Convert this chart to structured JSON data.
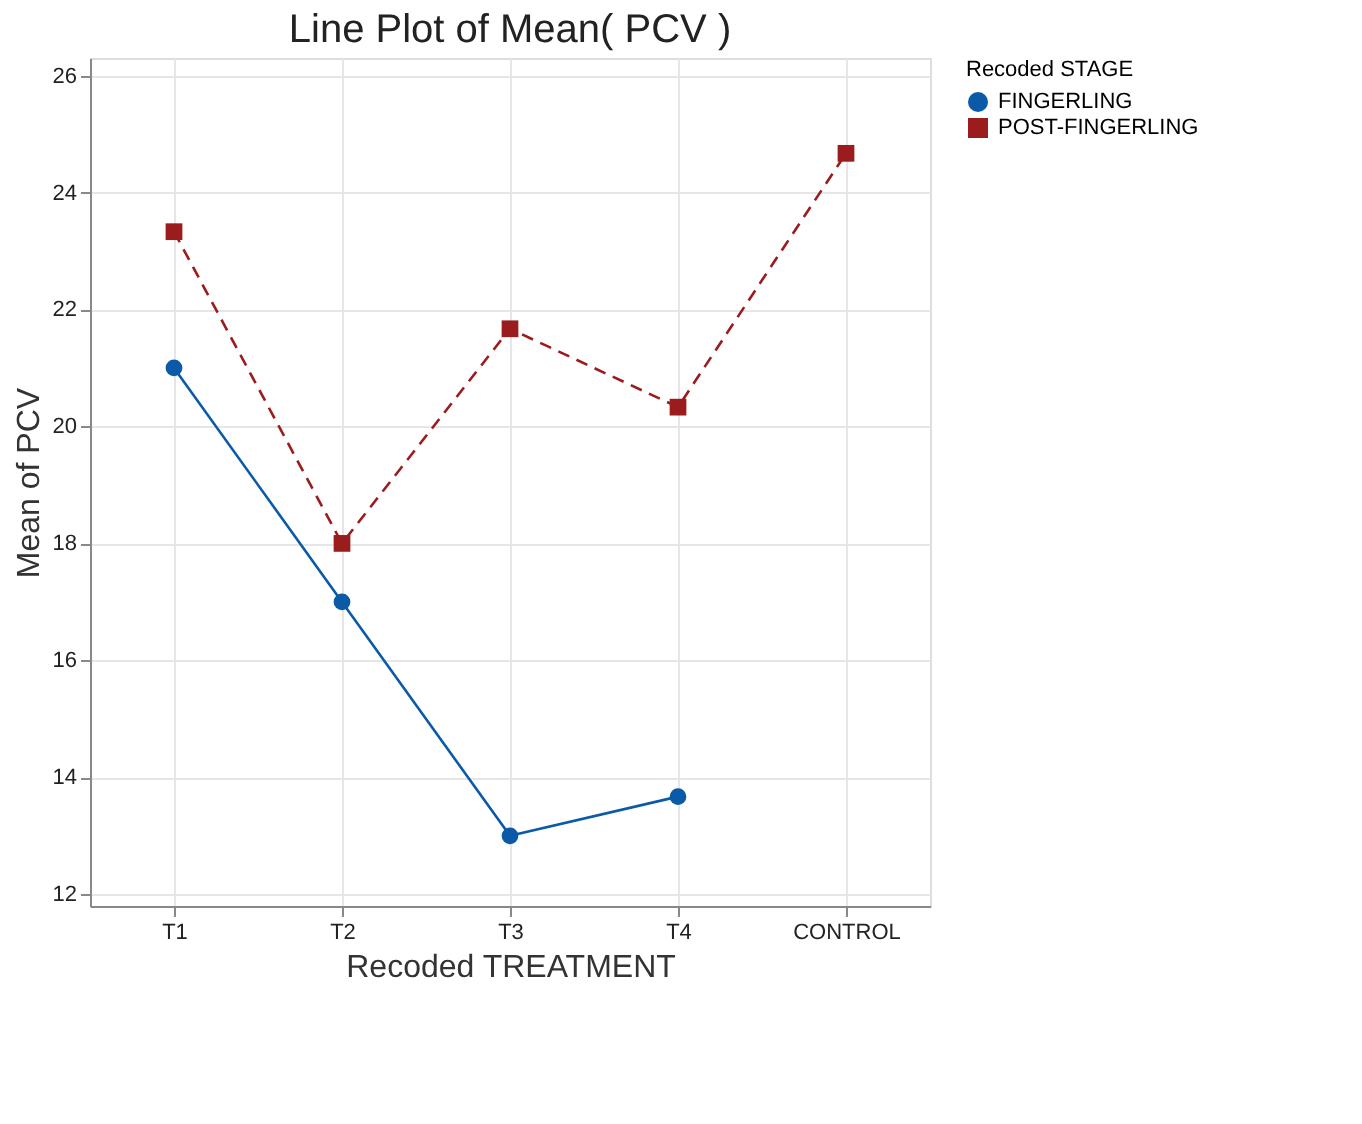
{
  "chart_data": {
    "type": "line",
    "title": "Line Plot of Mean( PCV )",
    "xlabel": "Recoded TREATMENT",
    "ylabel": "Mean of PCV",
    "legend_title": "Recoded STAGE",
    "categories": [
      "T1",
      "T2",
      "T3",
      "T4",
      "CONTROL"
    ],
    "series": [
      {
        "name": "FINGERLING",
        "color": "#0b5aa8",
        "values": [
          21.0,
          17.0,
          13.0,
          13.67,
          null
        ],
        "marker": "circle",
        "line_style": "solid"
      },
      {
        "name": "POST-FINGERLING",
        "color": "#9b1c1c",
        "values": [
          23.33,
          18.0,
          21.67,
          20.33,
          24.67
        ],
        "marker": "square",
        "line_style": "dashed"
      }
    ],
    "ylim": [
      11.8,
      26.3
    ],
    "yticks": [
      12,
      14,
      16,
      18,
      20,
      22,
      24,
      26
    ],
    "grid": true,
    "legend": "top right"
  }
}
